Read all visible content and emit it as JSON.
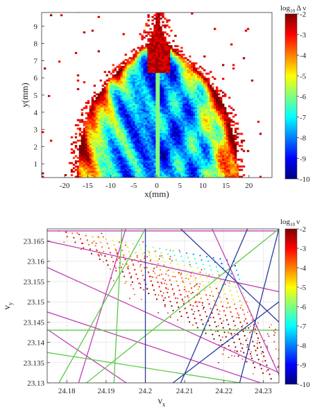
{
  "chart_data": [
    {
      "type": "heatmap",
      "xlabel": "x(mm)",
      "ylabel": "y(mm)",
      "xlim": [
        -25,
        25
      ],
      "ylim": [
        0.2,
        9.8
      ],
      "xticks": [
        "-20",
        "-15",
        "-10",
        "-5",
        "0",
        "5",
        "10",
        "15",
        "20"
      ],
      "xtick_values": [
        -20,
        -15,
        -10,
        -5,
        0,
        5,
        10,
        15,
        20
      ],
      "yticks": [
        "1",
        "2",
        "3",
        "4",
        "5",
        "6",
        "7",
        "8",
        "9"
      ],
      "ytick_values": [
        1,
        2,
        3,
        4,
        5,
        6,
        7,
        8,
        9
      ],
      "grid": false,
      "colorbar": {
        "title_base": "log",
        "title_sub": "10",
        "title_rest": "Δ ν",
        "ticks": [
          "-2",
          "-3",
          "-4",
          "-5",
          "-6",
          "-7",
          "-8",
          "-9",
          "-10"
        ],
        "tick_values": [
          -2,
          -3,
          -4,
          -5,
          -6,
          -7,
          -8,
          -9,
          -10
        ],
        "range": [
          -10,
          -2
        ],
        "colormap": "jet"
      },
      "region": {
        "shape": "dome-shaped frequency map symmetric about x = 0",
        "half_width_at_y": [
          [
            0.2,
            17.5
          ],
          [
            2,
            17.0
          ],
          [
            4,
            15.0
          ],
          [
            5,
            13.0
          ],
          [
            6,
            10.0
          ],
          [
            7,
            6.0
          ],
          [
            8,
            2.0
          ],
          [
            9,
            0.6
          ],
          [
            9.8,
            0.4
          ]
        ],
        "center_value": -8,
        "edge_value": -2
      }
    },
    {
      "type": "scatter",
      "xlabel_base": "ν",
      "xlabel_sub": "x",
      "ylabel_base": "ν",
      "ylabel_sub": "y",
      "xlim": [
        24.175,
        24.234
      ],
      "ylim": [
        23.13,
        23.168
      ],
      "xticks": [
        "24.18",
        "24.19",
        "24.2",
        "24.21",
        "24.22",
        "24.23"
      ],
      "xtick_values": [
        24.18,
        24.19,
        24.2,
        24.21,
        24.22,
        24.23
      ],
      "yticks": [
        "23.13",
        "23.135",
        "23.14",
        "23.145",
        "23.15",
        "23.155",
        "23.16",
        "23.165"
      ],
      "ytick_values": [
        23.13,
        23.135,
        23.14,
        23.145,
        23.15,
        23.155,
        23.16,
        23.165
      ],
      "grid": true,
      "colorbar": {
        "title_base": "log",
        "title_sub": "10",
        "title_rest": "ν",
        "ticks": [
          "-2",
          "-3",
          "-4",
          "-5",
          "-6",
          "-7",
          "-8",
          "-9",
          "-10"
        ],
        "tick_values": [
          -2,
          -3,
          -4,
          -5,
          -6,
          -7,
          -8,
          -9,
          -10
        ],
        "range": [
          -10,
          -2
        ],
        "colormap": "jet"
      },
      "tune_footprint": {
        "corner_top_left": [
          24.178,
          23.1675
        ],
        "corner_top_right": [
          24.2225,
          23.16
        ],
        "corner_bottom": [
          24.232,
          23.131
        ]
      },
      "resonance_lines": {
        "colors": {
          "green": "#5cc84a",
          "blue": "#2a3aa0",
          "magenta": "#c040b0"
        },
        "lines": [
          {
            "color": "magenta",
            "from": [
              24.175,
              23.1675
            ],
            "to": [
              24.234,
              23.1675
            ]
          },
          {
            "color": "magenta",
            "from": [
              24.175,
              23.165
            ],
            "to": [
              24.234,
              23.1525
            ]
          },
          {
            "color": "magenta",
            "from": [
              24.175,
              23.1585
            ],
            "to": [
              24.234,
              23.1325
            ]
          },
          {
            "color": "magenta",
            "from": [
              24.175,
              23.1475
            ],
            "to": [
              24.234,
              23.1285
            ]
          },
          {
            "color": "magenta",
            "from": [
              24.175,
              23.1432
            ],
            "to": [
              24.202,
              23.1255
            ]
          },
          {
            "color": "magenta",
            "from": [
              24.183,
              23.13
            ],
            "to": [
              24.195,
              23.168
            ]
          },
          {
            "color": "magenta",
            "from": [
              24.217,
              23.168
            ],
            "to": [
              24.234,
              23.132
            ]
          },
          {
            "color": "green",
            "from": [
              24.175,
              23.143
            ],
            "to": [
              24.234,
              23.143
            ]
          },
          {
            "color": "green",
            "from": [
              24.175,
              23.1375
            ],
            "to": [
              24.234,
              23.1285
            ]
          },
          {
            "color": "green",
            "from": [
              24.178,
              23.13
            ],
            "to": [
              24.2,
              23.168
            ]
          },
          {
            "color": "green",
            "from": [
              24.192,
              23.13
            ],
            "to": [
              24.194,
              23.168
            ]
          },
          {
            "color": "green",
            "from": [
              24.185,
              23.13
            ],
            "to": [
              24.234,
              23.168
            ]
          },
          {
            "color": "blue",
            "from": [
              24.2,
              23.13
            ],
            "to": [
              24.2,
              23.168
            ]
          },
          {
            "color": "blue",
            "from": [
              24.207,
              23.13
            ],
            "to": [
              24.234,
              23.15
            ]
          },
          {
            "color": "blue",
            "from": [
              24.209,
              23.13
            ],
            "to": [
              24.226,
              23.168
            ]
          },
          {
            "color": "blue",
            "from": [
              24.209,
              23.168
            ],
            "to": [
              24.234,
              23.145
            ]
          },
          {
            "color": "blue",
            "from": [
              24.224,
              23.13
            ],
            "to": [
              24.234,
              23.168
            ]
          }
        ]
      }
    }
  ]
}
